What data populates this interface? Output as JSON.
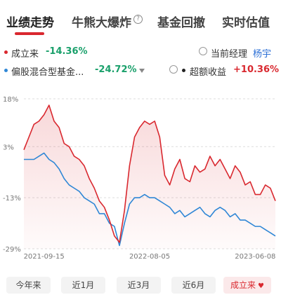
{
  "tabs": [
    {
      "label": "业绩走势",
      "active": true
    },
    {
      "label": "牛熊大爆炸",
      "active": false,
      "help_icon": "?"
    },
    {
      "label": "基金回撤",
      "active": false
    },
    {
      "label": "实时估值",
      "active": false
    }
  ],
  "legend": {
    "row1": {
      "name": "成立来",
      "value": "-14.36%",
      "color": "#d9282f",
      "value_color": "#1aa06b",
      "toggle_label": "当前经理",
      "toggle_link": "杨宇",
      "link_color": "#2b6fd6"
    },
    "row2": {
      "name": "偏股混合型基金...",
      "value": "-24.72%",
      "color": "#2f87d6",
      "value_color": "#1aa06b",
      "toggle_label": "超额收益",
      "toggle_value": "+10.36%",
      "toggle_value_color": "#d9282f"
    }
  },
  "chart_data": {
    "type": "line",
    "y_ticks": [
      "18%",
      "3%",
      "-13%",
      "-29%"
    ],
    "x_ticks": [
      "2021-09-15",
      "2022-08-05",
      "2023-06-08"
    ],
    "ylim": [
      -29,
      18
    ],
    "grid": "horizontal dashed",
    "x": [
      "2021-07-20",
      "2021-08-01",
      "2021-08-15",
      "2021-09-01",
      "2021-09-15",
      "2021-10-01",
      "2021-10-15",
      "2021-11-01",
      "2021-11-15",
      "2021-12-01",
      "2021-12-15",
      "2022-01-01",
      "2022-01-15",
      "2022-02-01",
      "2022-02-15",
      "2022-03-01",
      "2022-03-15",
      "2022-04-01",
      "2022-04-15",
      "2022-04-27",
      "2022-05-10",
      "2022-06-01",
      "2022-06-15",
      "2022-07-01",
      "2022-07-15",
      "2022-08-05",
      "2022-08-20",
      "2022-09-01",
      "2022-09-15",
      "2022-10-01",
      "2022-10-15",
      "2022-11-01",
      "2022-11-15",
      "2022-12-01",
      "2022-12-15",
      "2023-01-01",
      "2023-01-15",
      "2023-02-01",
      "2023-02-15",
      "2023-03-01",
      "2023-03-15",
      "2023-04-01",
      "2023-04-15",
      "2023-05-01",
      "2023-05-15",
      "2023-06-01",
      "2023-06-08",
      "2023-06-20",
      "2023-07-01",
      "2023-07-15",
      "2023-07-25"
    ],
    "series": [
      {
        "name": "成立来",
        "color": "#d9282f",
        "values": [
          2,
          6,
          10,
          11,
          13,
          16,
          11,
          9,
          4,
          3,
          0,
          -1,
          -3,
          -7,
          -10,
          -14,
          -16,
          -20,
          -25,
          -27,
          -17,
          -3,
          6,
          9,
          11,
          10,
          11,
          6,
          -6,
          -9,
          -4,
          -1,
          -7,
          -8,
          -3,
          -5,
          -4,
          0,
          -3,
          -1,
          -4,
          -7,
          -3,
          -5,
          -9,
          -8,
          -12,
          -12,
          -9,
          -10,
          -14
        ]
      },
      {
        "name": "偏股混合型基金...",
        "color": "#2f87d6",
        "values": [
          -1,
          -1,
          -1,
          0,
          1,
          -1,
          -2,
          -4,
          -7,
          -9,
          -10,
          -11,
          -13,
          -14,
          -15,
          -18,
          -18,
          -21,
          -22,
          -28,
          -21,
          -15,
          -13,
          -13,
          -12,
          -13,
          -13,
          -14,
          -15,
          -16,
          -18,
          -17,
          -19,
          -18,
          -17,
          -16,
          -18,
          -19,
          -17,
          -16,
          -17,
          -19,
          -18,
          -20,
          -20,
          -21,
          -22,
          -22,
          -23,
          -24,
          -25
        ]
      }
    ]
  },
  "periods": [
    {
      "label": "今年来",
      "selected": false
    },
    {
      "label": "近1月",
      "selected": false
    },
    {
      "label": "近3月",
      "selected": false
    },
    {
      "label": "近6月",
      "selected": false
    },
    {
      "label": "成立来",
      "selected": true,
      "icon": "heart-icon"
    }
  ]
}
